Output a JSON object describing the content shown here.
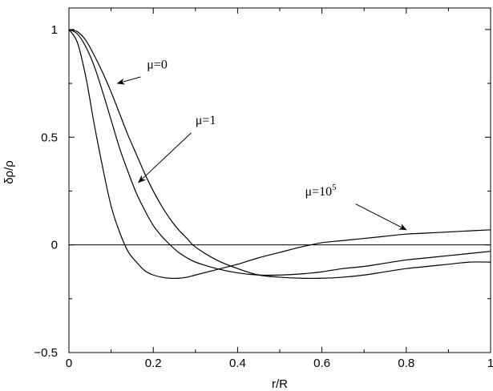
{
  "chart_data": {
    "type": "line",
    "xlabel": "r/R",
    "ylabel": "δρ/ρ",
    "xlim": [
      0,
      1
    ],
    "ylim": [
      -0.5,
      1.1
    ],
    "xticks": [
      0,
      0.2,
      0.4,
      0.6,
      0.8,
      1
    ],
    "xtick_labels": [
      "0",
      "0.2",
      "0.4",
      "0.6",
      "0.8",
      "1"
    ],
    "yticks": [
      -0.5,
      0,
      0.5,
      1
    ],
    "ytick_labels": [
      "−0.5",
      "0",
      "0.5",
      "1"
    ],
    "reference_line_y": 0,
    "grid": false,
    "series": [
      {
        "name": "μ=0",
        "x": [
          0,
          0.02,
          0.04,
          0.06,
          0.08,
          0.1,
          0.12,
          0.14,
          0.16,
          0.18,
          0.2,
          0.22,
          0.24,
          0.26,
          0.28,
          0.3,
          0.35,
          0.4,
          0.45,
          0.5,
          0.55,
          0.6,
          0.65,
          0.7,
          0.75,
          0.8,
          0.85,
          0.9,
          0.95,
          1.0
        ],
        "y": [
          1.0,
          0.99,
          0.95,
          0.88,
          0.8,
          0.71,
          0.61,
          0.51,
          0.42,
          0.33,
          0.25,
          0.18,
          0.12,
          0.07,
          0.03,
          -0.01,
          -0.07,
          -0.11,
          -0.14,
          -0.15,
          -0.155,
          -0.155,
          -0.15,
          -0.14,
          -0.125,
          -0.11,
          -0.1,
          -0.09,
          -0.08,
          -0.08
        ]
      },
      {
        "name": "μ=1",
        "x": [
          0,
          0.02,
          0.04,
          0.06,
          0.08,
          0.1,
          0.12,
          0.14,
          0.16,
          0.18,
          0.2,
          0.22,
          0.24,
          0.26,
          0.28,
          0.3,
          0.35,
          0.4,
          0.45,
          0.5,
          0.55,
          0.6,
          0.65,
          0.7,
          0.75,
          0.8,
          0.85,
          0.9,
          0.95,
          1.0
        ],
        "y": [
          1.0,
          0.98,
          0.92,
          0.83,
          0.71,
          0.58,
          0.45,
          0.34,
          0.24,
          0.16,
          0.09,
          0.04,
          0.0,
          -0.035,
          -0.06,
          -0.08,
          -0.11,
          -0.13,
          -0.14,
          -0.14,
          -0.135,
          -0.125,
          -0.11,
          -0.1,
          -0.085,
          -0.07,
          -0.06,
          -0.05,
          -0.04,
          -0.03
        ]
      },
      {
        "name": "μ=10⁵",
        "x": [
          0,
          0.02,
          0.04,
          0.06,
          0.08,
          0.1,
          0.12,
          0.14,
          0.16,
          0.18,
          0.2,
          0.22,
          0.24,
          0.26,
          0.28,
          0.3,
          0.35,
          0.4,
          0.45,
          0.5,
          0.55,
          0.6,
          0.65,
          0.7,
          0.75,
          0.8,
          0.85,
          0.9,
          0.95,
          1.0
        ],
        "y": [
          1.0,
          0.94,
          0.78,
          0.56,
          0.36,
          0.18,
          0.06,
          -0.03,
          -0.08,
          -0.12,
          -0.14,
          -0.15,
          -0.155,
          -0.155,
          -0.15,
          -0.14,
          -0.115,
          -0.09,
          -0.06,
          -0.035,
          -0.01,
          0.01,
          0.02,
          0.03,
          0.04,
          0.05,
          0.055,
          0.06,
          0.065,
          0.07
        ]
      }
    ],
    "annotations": [
      {
        "text_main": "μ=0",
        "text_sup": "",
        "text_x": 0.185,
        "text_y": 0.82,
        "arrow_from": [
          0.17,
          0.78
        ],
        "arrow_to": [
          0.115,
          0.75
        ]
      },
      {
        "text_main": "μ=1",
        "text_sup": "",
        "text_x": 0.3,
        "text_y": 0.56,
        "arrow_from": [
          0.29,
          0.52
        ],
        "arrow_to": [
          0.165,
          0.29
        ]
      },
      {
        "text_main": "μ=10",
        "text_sup": "5",
        "text_x": 0.56,
        "text_y": 0.23,
        "arrow_from": [
          0.68,
          0.19
        ],
        "arrow_to": [
          0.8,
          0.07
        ]
      }
    ]
  }
}
